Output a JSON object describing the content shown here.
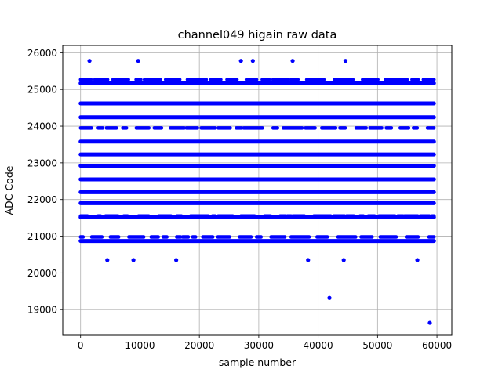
{
  "chart_data": {
    "type": "scatter",
    "title": "channel049 higain raw data",
    "xlabel": "sample number",
    "ylabel": "ADC Code",
    "xlim": [
      -3000,
      62500
    ],
    "ylim": [
      18300,
      26200
    ],
    "xticks": [
      0,
      10000,
      20000,
      30000,
      40000,
      50000,
      60000
    ],
    "yticks": [
      19000,
      20000,
      21000,
      22000,
      23000,
      24000,
      25000,
      26000
    ],
    "xtick_labels": [
      "0",
      "10000",
      "20000",
      "30000",
      "40000",
      "50000",
      "60000"
    ],
    "ytick_labels": [
      "19000",
      "20000",
      "21000",
      "22000",
      "23000",
      "24000",
      "25000",
      "26000"
    ],
    "grid": true,
    "marker_color": "#0000ff",
    "x_range": [
      0,
      59500
    ],
    "dense_levels": [
      {
        "y": 20870,
        "density": "continuous"
      },
      {
        "y": 21520,
        "density": "continuous"
      },
      {
        "y": 21900,
        "density": "continuous"
      },
      {
        "y": 22200,
        "density": "continuous"
      },
      {
        "y": 22550,
        "density": "continuous"
      },
      {
        "y": 22920,
        "density": "continuous"
      },
      {
        "y": 23230,
        "density": "continuous"
      },
      {
        "y": 23580,
        "density": "continuous"
      },
      {
        "y": 24240,
        "density": "continuous"
      },
      {
        "y": 24620,
        "density": "continuous"
      },
      {
        "y": 25170,
        "density": "continuous"
      },
      {
        "y": 23950,
        "density": "sparse"
      },
      {
        "y": 25270,
        "density": "sparse"
      },
      {
        "y": 21550,
        "density": "sparse"
      },
      {
        "y": 20980,
        "density": "sparse"
      }
    ],
    "outliers": [
      {
        "x": 1500,
        "y": 25780
      },
      {
        "x": 9700,
        "y": 25780
      },
      {
        "x": 27000,
        "y": 25780
      },
      {
        "x": 29000,
        "y": 25780
      },
      {
        "x": 35700,
        "y": 25780
      },
      {
        "x": 44600,
        "y": 25780
      },
      {
        "x": 4500,
        "y": 20350
      },
      {
        "x": 8900,
        "y": 20350
      },
      {
        "x": 16100,
        "y": 20350
      },
      {
        "x": 38300,
        "y": 20350
      },
      {
        "x": 44300,
        "y": 20350
      },
      {
        "x": 56700,
        "y": 20350
      },
      {
        "x": 41900,
        "y": 19320
      },
      {
        "x": 58800,
        "y": 18640
      }
    ]
  }
}
